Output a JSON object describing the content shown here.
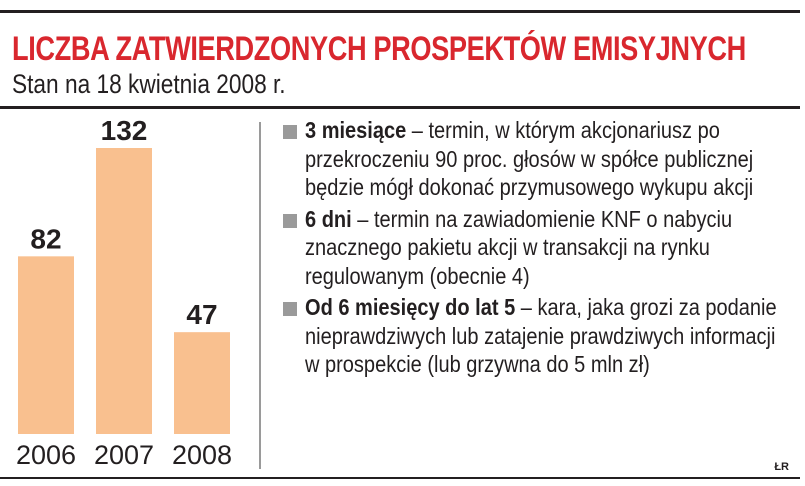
{
  "title": "LICZBA ZATWIERDZONYCH PROSPEKTÓW EMISYJNYCH",
  "subtitle": "Stan na 18 kwietnia 2008 r.",
  "colors": {
    "title": "#d9272e",
    "bar": "#f9c08f",
    "bullet": "#9a9a9a",
    "text": "#231f20"
  },
  "chart_data": {
    "type": "bar",
    "categories": [
      "2006",
      "2007",
      "2008"
    ],
    "values": [
      82,
      132,
      47
    ],
    "title": "LICZBA ZATWIERDZONYCH PROSPEKTÓW EMISYJNYCH",
    "subtitle": "Stan na 18 kwietnia 2008 r.",
    "xlabel": "",
    "ylabel": "",
    "data_labels": true,
    "grid": false,
    "ylim": [
      0,
      132
    ]
  },
  "notes": [
    {
      "bold": "3 miesiące",
      "text": " – termin, w którym akcjonariusz po przekroczeniu 90 proc. głosów w spółce publicznej będzie mógł dokonać przymusowego wykupu akcji"
    },
    {
      "bold": "6 dni",
      "text": " – termin na zawiadomienie KNF o nabyciu znacznego pakietu akcji w transakcji na rynku regulowanym (obecnie 4)"
    },
    {
      "bold": "Od 6 miesięcy do lat 5",
      "text": " – kara, jaka grozi za podanie nieprawdziwych lub zatajenie prawdziwych informacji w prospekcie (lub grzywna do 5 mln zł)"
    }
  ],
  "credit": "ŁR"
}
